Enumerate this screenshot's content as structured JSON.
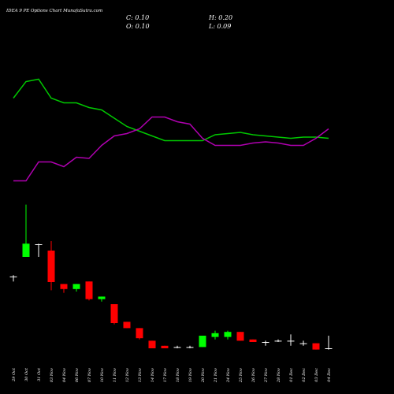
{
  "chart_data": {
    "type": "candlestick",
    "title": "IDEA 9 PE Options  Chart MunafaSutra.com",
    "header": {
      "close": "C: 0.10",
      "open": "O: 0.10",
      "high": "H: 0.20",
      "low": "L: 0.09"
    },
    "categories": [
      "29 Oct",
      "30 Oct",
      "31 Oct",
      "03 Nov",
      "04 Nov",
      "06 Nov",
      "07 Nov",
      "10 Nov",
      "11 Nov",
      "12 Nov",
      "13 Nov",
      "14 Nov",
      "17 Nov",
      "18 Nov",
      "19 Nov",
      "20 Nov",
      "21 Nov",
      "24 Nov",
      "25 Nov",
      "26 Nov",
      "27 Nov",
      "28 Nov",
      "01 Dec",
      "02 Dec",
      "03 Dec",
      "04 Dec"
    ],
    "open": [
      0.67,
      0.825,
      0.925,
      0.875,
      0.61,
      0.57,
      0.63,
      0.49,
      0.45,
      0.31,
      0.26,
      0.16,
      0.12,
      0.11,
      0.11,
      0.11,
      0.19,
      0.19,
      0.23,
      0.17,
      0.15,
      0.16,
      0.16,
      0.14,
      0.14,
      0.1
    ],
    "high": [
      0.68,
      1.24,
      0.93,
      0.95,
      0.61,
      0.61,
      0.63,
      0.51,
      0.45,
      0.31,
      0.26,
      0.16,
      0.12,
      0.12,
      0.12,
      0.2,
      0.24,
      0.24,
      0.23,
      0.17,
      0.16,
      0.17,
      0.21,
      0.16,
      0.14,
      0.2
    ],
    "low": [
      0.63,
      0.825,
      0.825,
      0.56,
      0.54,
      0.55,
      0.48,
      0.47,
      0.29,
      0.26,
      0.17,
      0.1,
      0.1,
      0.1,
      0.1,
      0.11,
      0.17,
      0.17,
      0.16,
      0.15,
      0.12,
      0.15,
      0.12,
      0.12,
      0.09,
      0.09
    ],
    "close": [
      0.67,
      0.93,
      0.925,
      0.625,
      0.57,
      0.61,
      0.49,
      0.51,
      0.3,
      0.26,
      0.18,
      0.1,
      0.1,
      0.11,
      0.11,
      0.2,
      0.22,
      0.23,
      0.16,
      0.15,
      0.15,
      0.16,
      0.16,
      0.14,
      0.09,
      0.1
    ],
    "ylim": [
      0,
      1.35
    ],
    "up_color": "#00ff00",
    "down_color": "#ff0000",
    "flat_color": "#ffffff",
    "indicator_ylim": [
      0,
      100
    ],
    "indicators": [
      {
        "color": "#00c800",
        "values": [
          77,
          91,
          93,
          77,
          73,
          73,
          69,
          67,
          60,
          53,
          49,
          45,
          41,
          41,
          41,
          41,
          46,
          47,
          48,
          46,
          45,
          44,
          43,
          44,
          44,
          43
        ]
      },
      {
        "color": "#b000b0",
        "values": [
          7,
          7,
          23,
          23,
          19,
          27,
          26,
          37,
          45,
          47,
          51,
          61,
          61,
          57,
          55,
          43,
          37,
          37,
          37,
          39,
          40,
          39,
          37,
          37,
          43,
          51
        ]
      }
    ]
  }
}
